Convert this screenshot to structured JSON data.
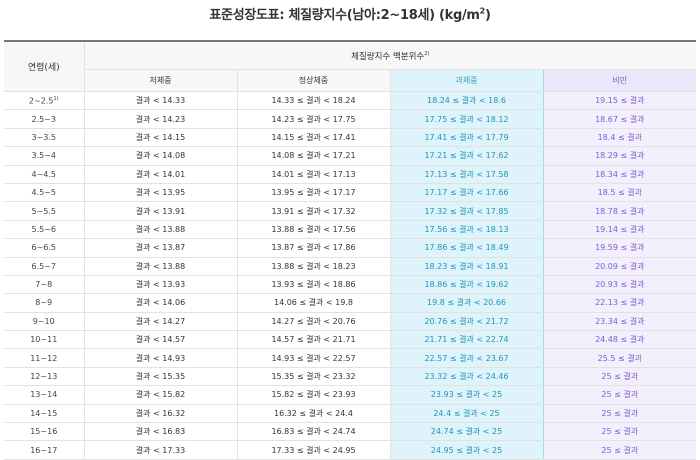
{
  "title": "표준성장도표: 체질량지수(남아:2~18세) (kg/m",
  "title_sup": "2",
  "title_end": ")",
  "header": {
    "age": "연령(세)",
    "group": "체질량지수 백분위수",
    "group_sup": "2)",
    "underweight": "저체중",
    "normal": "정상체중",
    "overweight": "과체중",
    "obese": "비만"
  },
  "colors": {
    "overweight_bg": "#dff3fa",
    "overweight_text": "#1e95bd",
    "obese_bg": "#f3effc",
    "obese_text": "#7b5fd4"
  },
  "rows": [
    {
      "age": "2~2.5",
      "age_sup": "1)",
      "underweight": "결과 < 14.33",
      "normal": "14.33 ≤ 결과 < 18.24",
      "overweight": "18.24 ≤ 결과 < 18.6",
      "obese": "19.15 ≤ 결과"
    },
    {
      "age": "2.5~3",
      "age_sup": "",
      "underweight": "결과 < 14.23",
      "normal": "14.23 ≤ 결과 < 17.75",
      "overweight": "17.75 ≤ 결과 < 18.12",
      "obese": "18.67 ≤ 결과"
    },
    {
      "age": "3~3.5",
      "age_sup": "",
      "underweight": "결과 < 14.15",
      "normal": "14.15 ≤ 결과 < 17.41",
      "overweight": "17.41 ≤ 결과 < 17.79",
      "obese": "18.4 ≤ 결과"
    },
    {
      "age": "3.5~4",
      "age_sup": "",
      "underweight": "결과 < 14.08",
      "normal": "14.08 ≤ 결과 < 17.21",
      "overweight": "17.21 ≤ 결과 < 17.62",
      "obese": "18.29 ≤ 결과"
    },
    {
      "age": "4~4.5",
      "age_sup": "",
      "underweight": "결과 < 14.01",
      "normal": "14.01 ≤ 결과 < 17.13",
      "overweight": "17.13 ≤ 결과 < 17.58",
      "obese": "18.34 ≤ 결과"
    },
    {
      "age": "4.5~5",
      "age_sup": "",
      "underweight": "결과 < 13.95",
      "normal": "13.95 ≤ 결과 < 17.17",
      "overweight": "17.17 ≤ 결과 < 17.66",
      "obese": "18.5 ≤ 결과"
    },
    {
      "age": "5~5.5",
      "age_sup": "",
      "underweight": "결과 < 13.91",
      "normal": "13.91 ≤ 결과 < 17.32",
      "overweight": "17.32 ≤ 결과 < 17.85",
      "obese": "18.78 ≤ 결과"
    },
    {
      "age": "5.5~6",
      "age_sup": "",
      "underweight": "결과 < 13.88",
      "normal": "13.88 ≤ 결과 < 17.56",
      "overweight": "17.56 ≤ 결과 < 18.13",
      "obese": "19.14 ≤ 결과"
    },
    {
      "age": "6~6.5",
      "age_sup": "",
      "underweight": "결과 < 13.87",
      "normal": "13.87 ≤ 결과 < 17.86",
      "overweight": "17.86 ≤ 결과 < 18.49",
      "obese": "19.59 ≤ 결과"
    },
    {
      "age": "6.5~7",
      "age_sup": "",
      "underweight": "결과 < 13.88",
      "normal": "13.88 ≤ 결과 < 18.23",
      "overweight": "18.23 ≤ 결과 < 18.91",
      "obese": "20.09 ≤ 결과"
    },
    {
      "age": "7~8",
      "age_sup": "",
      "underweight": "결과 < 13.93",
      "normal": "13.93 ≤ 결과 < 18.86",
      "overweight": "18.86 ≤ 결과 < 19.62",
      "obese": "20.93 ≤ 결과"
    },
    {
      "age": "8~9",
      "age_sup": "",
      "underweight": "결과 < 14.06",
      "normal": "14.06 ≤ 결과 < 19.8",
      "overweight": "19.8 ≤ 결과 < 20.66",
      "obese": "22.13 ≤ 결과"
    },
    {
      "age": "9~10",
      "age_sup": "",
      "underweight": "결과 < 14.27",
      "normal": "14.27 ≤ 결과 < 20.76",
      "overweight": "20.76 ≤ 결과 < 21.72",
      "obese": "23.34 ≤ 결과"
    },
    {
      "age": "10~11",
      "age_sup": "",
      "underweight": "결과 < 14.57",
      "normal": "14.57 ≤ 결과 < 21.71",
      "overweight": "21.71 ≤ 결과 < 22.74",
      "obese": "24.48 ≤ 결과"
    },
    {
      "age": "11~12",
      "age_sup": "",
      "underweight": "결과 < 14.93",
      "normal": "14.93 ≤ 결과 < 22.57",
      "overweight": "22.57 ≤ 결과 < 23.67",
      "obese": "25.5 ≤ 결과"
    },
    {
      "age": "12~13",
      "age_sup": "",
      "underweight": "결과 < 15.35",
      "normal": "15.35 ≤ 결과 < 23.32",
      "overweight": "23.32 ≤ 결과 < 24.46",
      "obese": "25 ≤ 결과"
    },
    {
      "age": "13~14",
      "age_sup": "",
      "underweight": "결과 < 15.82",
      "normal": "15.82 ≤ 결과 < 23.93",
      "overweight": "23.93 ≤ 결과 < 25",
      "obese": "25 ≤ 결과"
    },
    {
      "age": "14~15",
      "age_sup": "",
      "underweight": "결과 < 16.32",
      "normal": "16.32 ≤ 결과 < 24.4",
      "overweight": "24.4 ≤ 결과 < 25",
      "obese": "25 ≤ 결과"
    },
    {
      "age": "15~16",
      "age_sup": "",
      "underweight": "결과 < 16.83",
      "normal": "16.83 ≤ 결과 < 24.74",
      "overweight": "24.74 ≤ 결과 < 25",
      "obese": "25 ≤ 결과"
    },
    {
      "age": "16~17",
      "age_sup": "",
      "underweight": "결과 < 17.33",
      "normal": "17.33 ≤ 결과 < 24.95",
      "overweight": "24.95 ≤ 결과 < 25",
      "obese": "25 ≤ 결과"
    }
  ]
}
